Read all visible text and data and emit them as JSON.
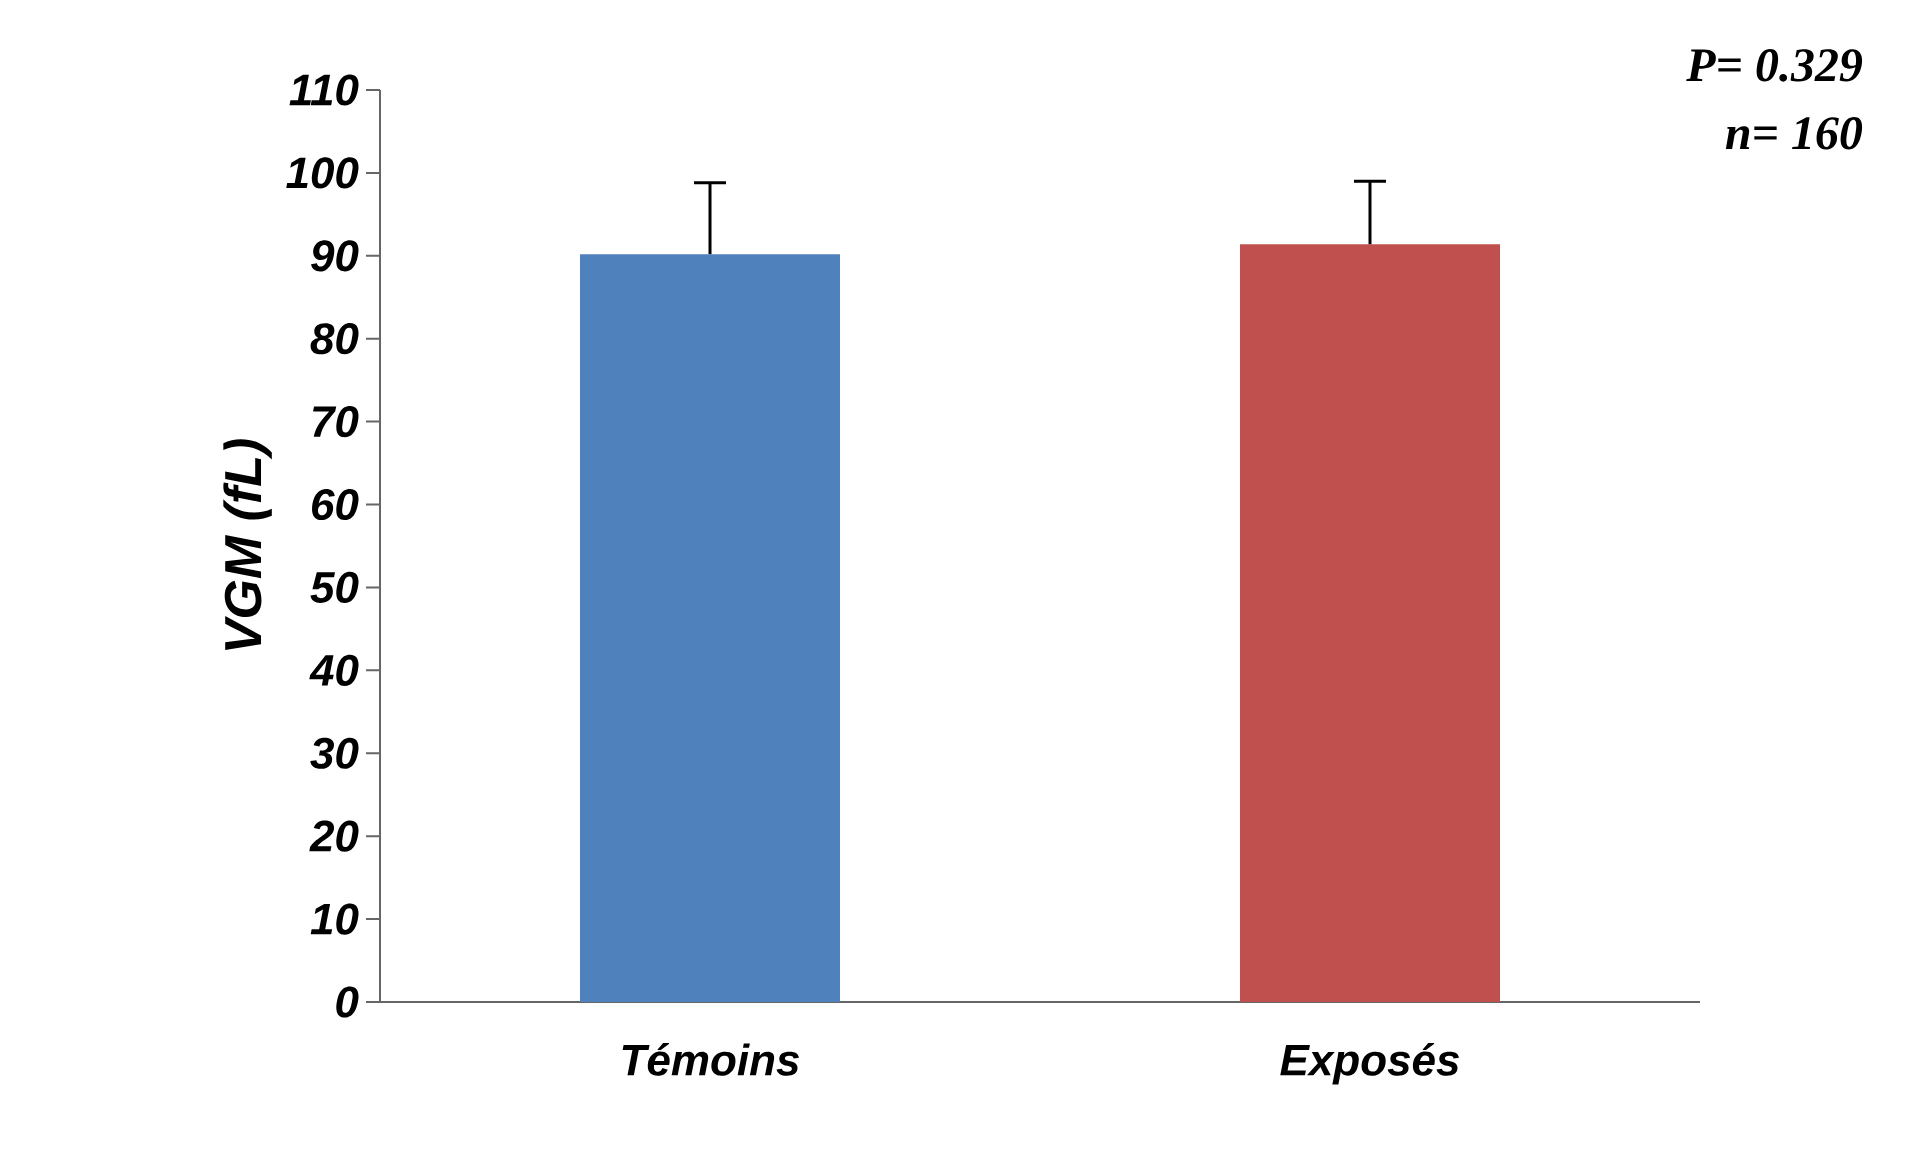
{
  "chart_data": {
    "type": "bar",
    "ylabel": "VGM (fL)",
    "categories": [
      "Témoins",
      "Exposés"
    ],
    "values": [
      90.2,
      91.4
    ],
    "colors": [
      "#4f81bd",
      "#c0504d"
    ],
    "errors": [
      8.6,
      7.6
    ],
    "ylim": [
      0,
      110
    ],
    "yticks": [
      0,
      10,
      20,
      30,
      40,
      50,
      60,
      70,
      80,
      90,
      100,
      110
    ],
    "annotations": [
      "P= 0.329",
      "n= 160"
    ]
  }
}
